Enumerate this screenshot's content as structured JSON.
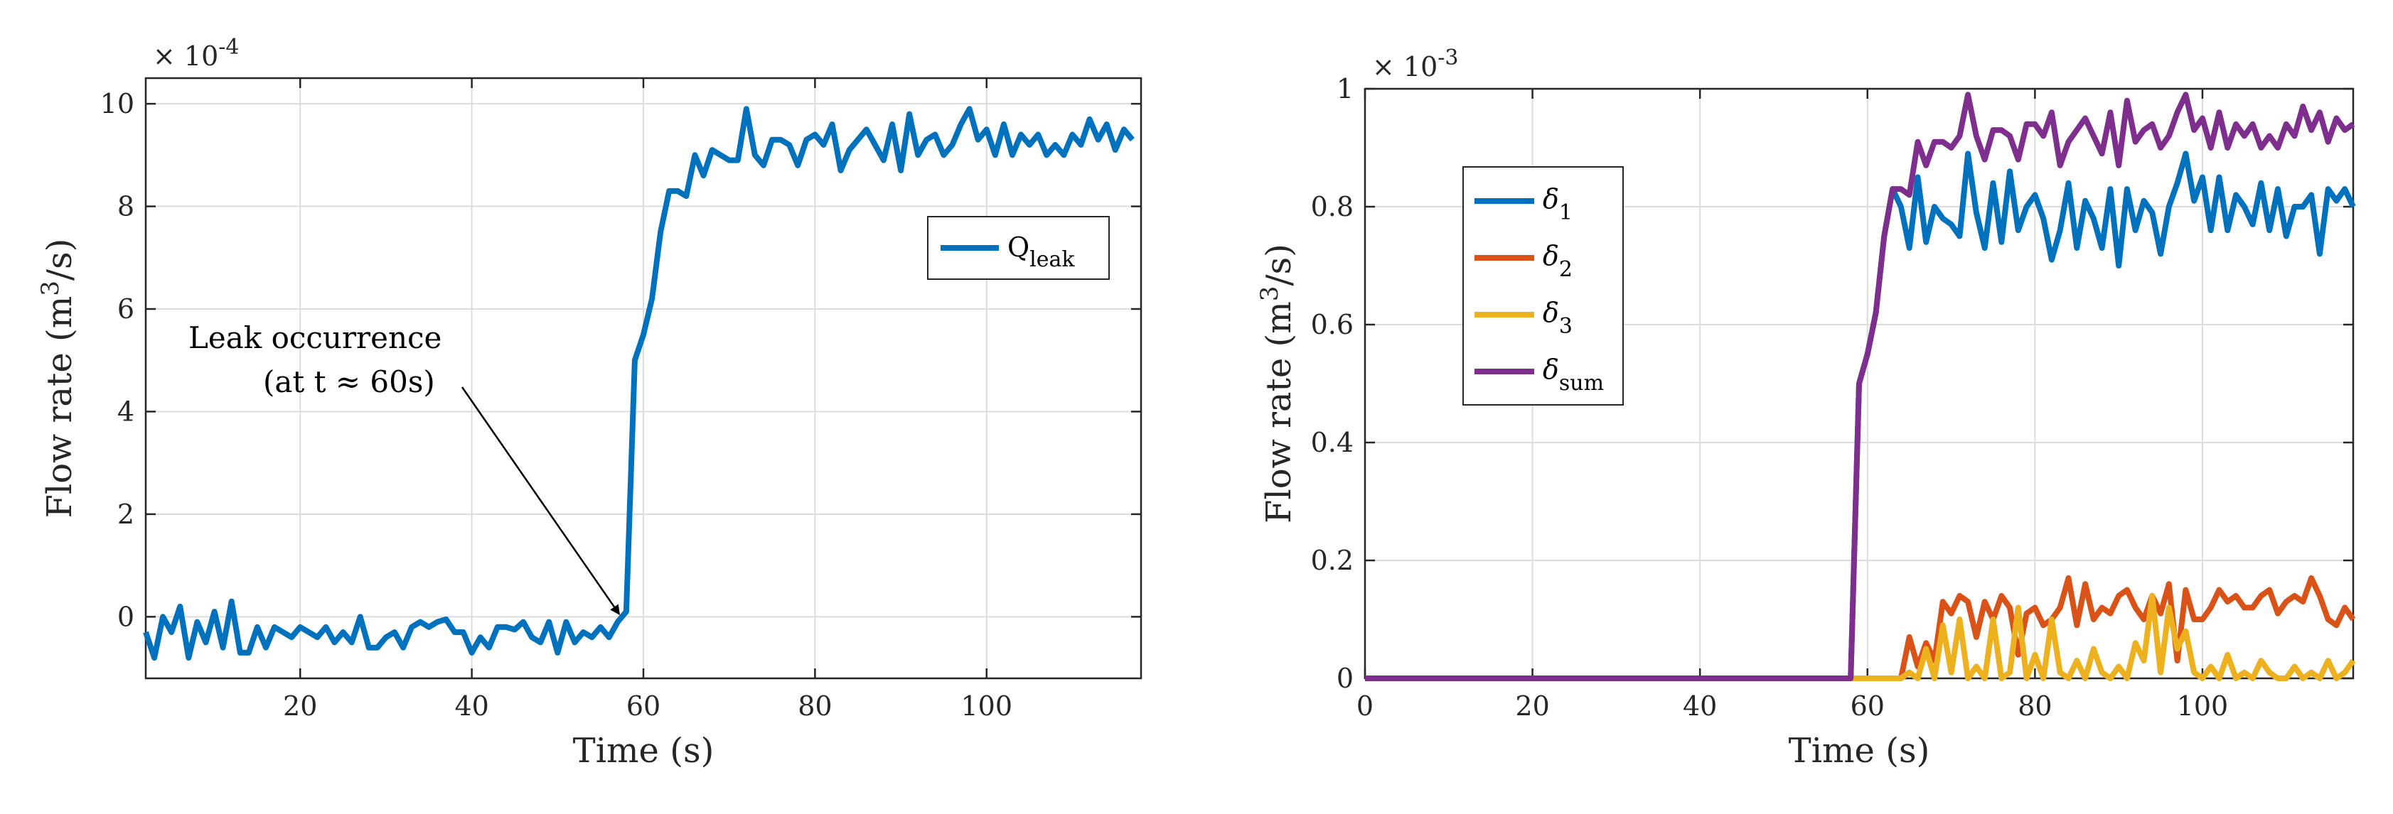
{
  "chart_data": [
    {
      "type": "line",
      "xlabel": "Time (s)",
      "ylabel": {
        "base": "Flow rate (m",
        "sup": "3",
        "tail": "/s)"
      },
      "exponent": {
        "base": "× 10",
        "sup": "-4"
      },
      "xlim": [
        2,
        118
      ],
      "ylim": [
        -1.2,
        10.5
      ],
      "xticks": [
        20,
        40,
        60,
        80,
        100
      ],
      "yticks": [
        0,
        2,
        4,
        6,
        8,
        10
      ],
      "xtick_labels": [
        "20",
        "40",
        "60",
        "80",
        "100"
      ],
      "ytick_labels": [
        "0",
        "2",
        "4",
        "6",
        "8",
        "10"
      ],
      "grid": true,
      "legend_position": "upper-right",
      "annotation": {
        "line1": "Leak occurrence",
        "line2": "(at t ≈ 60s)",
        "arrow_target": [
          57.5,
          0.0
        ]
      },
      "series": [
        {
          "name": "Q",
          "name_sub": "leak",
          "color": "#0072BD",
          "x": [
            2,
            3,
            4,
            5,
            6,
            7,
            8,
            9,
            10,
            11,
            12,
            13,
            14,
            15,
            16,
            17,
            18,
            19,
            20,
            21,
            22,
            23,
            24,
            25,
            26,
            27,
            28,
            29,
            30,
            31,
            32,
            33,
            34,
            35,
            36,
            37,
            38,
            39,
            40,
            41,
            42,
            43,
            44,
            45,
            46,
            47,
            48,
            49,
            50,
            51,
            52,
            53,
            54,
            55,
            56,
            57,
            58,
            59,
            60,
            61,
            62,
            63,
            64,
            65,
            66,
            67,
            68,
            69,
            70,
            71,
            72,
            73,
            74,
            75,
            76,
            77,
            78,
            79,
            80,
            81,
            82,
            83,
            84,
            85,
            86,
            87,
            88,
            89,
            90,
            91,
            92,
            93,
            94,
            95,
            96,
            97,
            98,
            99,
            100,
            101,
            102,
            103,
            104,
            105,
            106,
            107,
            108,
            109,
            110,
            111,
            112,
            113,
            114,
            115,
            116,
            117
          ],
          "values": [
            -0.3,
            -0.8,
            0.0,
            -0.3,
            0.2,
            -0.8,
            -0.1,
            -0.5,
            0.1,
            -0.6,
            0.3,
            -0.7,
            -0.7,
            -0.2,
            -0.6,
            -0.2,
            -0.3,
            -0.4,
            -0.2,
            -0.3,
            -0.4,
            -0.2,
            -0.5,
            -0.3,
            -0.5,
            0.0,
            -0.6,
            -0.6,
            -0.4,
            -0.3,
            -0.6,
            -0.2,
            -0.1,
            -0.2,
            -0.1,
            -0.05,
            -0.3,
            -0.3,
            -0.7,
            -0.4,
            -0.6,
            -0.2,
            -0.2,
            -0.25,
            -0.1,
            -0.4,
            -0.5,
            -0.1,
            -0.7,
            -0.1,
            -0.5,
            -0.3,
            -0.4,
            -0.2,
            -0.4,
            -0.1,
            0.1,
            5.0,
            5.5,
            6.2,
            7.5,
            8.3,
            8.3,
            8.2,
            9.0,
            8.6,
            9.1,
            9.0,
            8.9,
            8.9,
            9.9,
            9.0,
            8.8,
            9.3,
            9.3,
            9.2,
            8.8,
            9.3,
            9.4,
            9.2,
            9.6,
            8.7,
            9.1,
            9.3,
            9.5,
            9.2,
            8.9,
            9.6,
            8.7,
            9.8,
            9.0,
            9.3,
            9.4,
            9.0,
            9.2,
            9.6,
            9.9,
            9.3,
            9.5,
            9.0,
            9.6,
            9.0,
            9.4,
            9.2,
            9.4,
            9.0,
            9.2,
            9.0,
            9.4,
            9.2,
            9.7,
            9.3,
            9.6,
            9.1,
            9.5,
            9.3
          ]
        }
      ]
    },
    {
      "type": "line",
      "xlabel": "Time (s)",
      "ylabel": {
        "base": "Flow rate (m",
        "sup": "3",
        "tail": "/s)"
      },
      "exponent": {
        "base": "× 10",
        "sup": "-3"
      },
      "xlim": [
        0,
        118
      ],
      "ylim": [
        0,
        1.0
      ],
      "xticks": [
        0,
        20,
        40,
        60,
        80,
        100
      ],
      "yticks": [
        0,
        0.2,
        0.4,
        0.6,
        0.8,
        1.0
      ],
      "xtick_labels": [
        "0",
        "20",
        "40",
        "60",
        "80",
        "100"
      ],
      "ytick_labels": [
        "0",
        "0.2",
        "0.4",
        "0.6",
        "0.8",
        "1"
      ],
      "grid": true,
      "legend_position": "upper-left",
      "x": [
        0,
        10,
        20,
        30,
        40,
        50,
        58,
        59,
        60,
        61,
        62,
        63,
        64,
        65,
        66,
        67,
        68,
        69,
        70,
        71,
        72,
        73,
        74,
        75,
        76,
        77,
        78,
        79,
        80,
        81,
        82,
        83,
        84,
        85,
        86,
        87,
        88,
        89,
        90,
        91,
        92,
        93,
        94,
        95,
        96,
        97,
        98,
        99,
        100,
        101,
        102,
        103,
        104,
        105,
        106,
        107,
        108,
        109,
        110,
        111,
        112,
        113,
        114,
        115,
        116,
        117,
        118
      ],
      "series": [
        {
          "name": "δ",
          "name_sub": "1",
          "color": "#0072BD",
          "values": [
            0,
            0,
            0,
            0,
            0,
            0,
            0,
            0.5,
            0.55,
            0.62,
            0.75,
            0.83,
            0.8,
            0.73,
            0.85,
            0.74,
            0.8,
            0.78,
            0.77,
            0.75,
            0.89,
            0.79,
            0.73,
            0.84,
            0.74,
            0.86,
            0.76,
            0.8,
            0.82,
            0.78,
            0.71,
            0.76,
            0.84,
            0.73,
            0.81,
            0.78,
            0.73,
            0.83,
            0.7,
            0.83,
            0.76,
            0.81,
            0.79,
            0.72,
            0.8,
            0.84,
            0.89,
            0.81,
            0.85,
            0.76,
            0.85,
            0.76,
            0.82,
            0.8,
            0.77,
            0.84,
            0.76,
            0.83,
            0.75,
            0.8,
            0.8,
            0.82,
            0.72,
            0.83,
            0.81,
            0.83,
            0.8
          ]
        },
        {
          "name": "δ",
          "name_sub": "2",
          "color": "#D95319",
          "values": [
            0,
            0,
            0,
            0,
            0,
            0,
            0,
            0,
            0,
            0,
            0,
            0,
            0,
            0.07,
            0.02,
            0.06,
            0.03,
            0.13,
            0.11,
            0.14,
            0.13,
            0.07,
            0.13,
            0.1,
            0.14,
            0.12,
            0.04,
            0.11,
            0.12,
            0.09,
            0.1,
            0.12,
            0.17,
            0.09,
            0.16,
            0.1,
            0.12,
            0.11,
            0.14,
            0.15,
            0.12,
            0.1,
            0.14,
            0.11,
            0.16,
            0.03,
            0.15,
            0.1,
            0.1,
            0.12,
            0.15,
            0.13,
            0.14,
            0.12,
            0.12,
            0.14,
            0.15,
            0.11,
            0.13,
            0.14,
            0.13,
            0.17,
            0.14,
            0.1,
            0.09,
            0.12,
            0.1
          ]
        },
        {
          "name": "δ",
          "name_sub": "3",
          "color": "#EDB120",
          "values": [
            0,
            0,
            0,
            0,
            0,
            0,
            0,
            0,
            0,
            0,
            0,
            0,
            0,
            0.01,
            0.0,
            0.05,
            0.0,
            0.09,
            0.01,
            0.1,
            0.0,
            0.02,
            0.0,
            0.1,
            0.0,
            0.01,
            0.12,
            0.0,
            0.04,
            0.0,
            0.1,
            0.01,
            0.0,
            0.03,
            0.0,
            0.05,
            0.01,
            0.0,
            0.02,
            0.0,
            0.06,
            0.03,
            0.14,
            0.01,
            0.12,
            0.05,
            0.08,
            0.01,
            0.0,
            0.02,
            0.0,
            0.04,
            0.0,
            0.01,
            0.0,
            0.03,
            0.01,
            0.0,
            0.0,
            0.02,
            0.0,
            0.01,
            0.0,
            0.03,
            0.0,
            0.01,
            0.03
          ]
        },
        {
          "name": "δ",
          "name_sub": "sum",
          "color": "#7E2F8E",
          "values": [
            0,
            0,
            0,
            0,
            0,
            0,
            0,
            0.5,
            0.55,
            0.62,
            0.75,
            0.83,
            0.83,
            0.82,
            0.91,
            0.87,
            0.91,
            0.91,
            0.9,
            0.92,
            0.99,
            0.92,
            0.88,
            0.93,
            0.93,
            0.92,
            0.88,
            0.94,
            0.94,
            0.92,
            0.96,
            0.87,
            0.91,
            0.93,
            0.95,
            0.92,
            0.89,
            0.96,
            0.87,
            0.98,
            0.91,
            0.93,
            0.94,
            0.9,
            0.92,
            0.96,
            0.99,
            0.93,
            0.95,
            0.9,
            0.96,
            0.9,
            0.94,
            0.92,
            0.94,
            0.9,
            0.92,
            0.9,
            0.94,
            0.92,
            0.97,
            0.93,
            0.96,
            0.91,
            0.95,
            0.93,
            0.94
          ]
        }
      ]
    }
  ]
}
